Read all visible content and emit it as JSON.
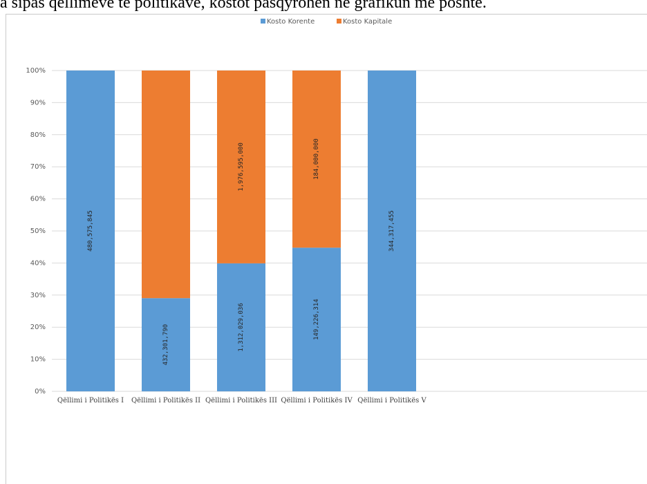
{
  "page_text": "a sipas qëllimeve të politikave, kostot pasqyrohen në grafikun më poshtë.",
  "chart_data": {
    "type": "bar",
    "stacked": "percent",
    "categories": [
      "Qëllimi i Politikës I",
      "Qëllimi i Politikës II",
      "Qëllimi i Politikës III",
      "Qëllimi i Politikës IV",
      "Qëllimi i Politikës V"
    ],
    "series": [
      {
        "name": "Kosto Korente",
        "color": "#5b9bd5",
        "values": [
          480575845,
          432301790,
          1312029036,
          149226314,
          344317455
        ],
        "labels": [
          "480,575,845",
          "432,301,790",
          "1,312,029,036",
          "149,226,314",
          "344,317,455"
        ]
      },
      {
        "name": "Kosto Kapitale",
        "color": "#ed7d31",
        "values": [
          0,
          1056000000,
          1976595000,
          184000000,
          0
        ],
        "labels": [
          "",
          "",
          "1,976,595,000",
          "184,000,000",
          ""
        ]
      }
    ],
    "y_ticks": [
      "0%",
      "10%",
      "20%",
      "30%",
      "40%",
      "50%",
      "60%",
      "70%",
      "80%",
      "90%",
      "100%"
    ],
    "ylim": [
      0,
      100
    ],
    "grid": true,
    "legend_position": "top-center"
  }
}
